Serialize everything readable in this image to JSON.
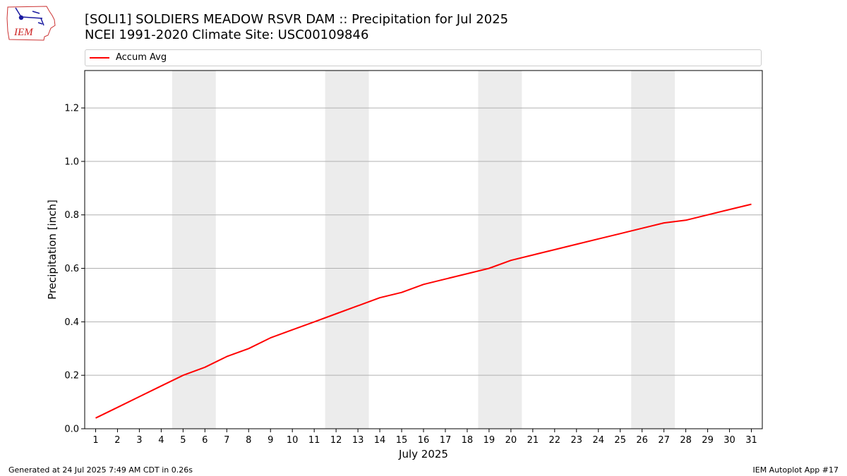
{
  "header": {
    "title_line1": "[SOLI1] SOLDIERS MEADOW RSVR DAM :: Precipitation for Jul 2025",
    "title_line2": "NCEI 1991-2020 Climate Site: USC00109846"
  },
  "logo": {
    "text": "IEM"
  },
  "footer": {
    "left": "Generated at 24 Jul 2025 7:49 AM CDT in 0.26s",
    "right": "IEM Autoplot App #17"
  },
  "colors": {
    "series": "#ff0000",
    "weekend_band": "#ececec",
    "grid": "#b0b0b0"
  },
  "chart_data": {
    "type": "line",
    "xlabel": "July 2025",
    "ylabel": "Precipitation [inch]",
    "xlim": [
      0.5,
      31.5
    ],
    "ylim": [
      0,
      1.34
    ],
    "x_ticks": [
      1,
      2,
      3,
      4,
      5,
      6,
      7,
      8,
      9,
      10,
      11,
      12,
      13,
      14,
      15,
      16,
      17,
      18,
      19,
      20,
      21,
      22,
      23,
      24,
      25,
      26,
      27,
      28,
      29,
      30,
      31
    ],
    "y_ticks": [
      0.0,
      0.2,
      0.4,
      0.6,
      0.8,
      1.0,
      1.2
    ],
    "grid": "horizontal",
    "legend_position": "top",
    "weekend_bands": [
      [
        5,
        6
      ],
      [
        12,
        13
      ],
      [
        19,
        20
      ],
      [
        26,
        27
      ]
    ],
    "series": [
      {
        "name": "Accum Avg",
        "x": [
          1,
          2,
          3,
          4,
          5,
          6,
          7,
          8,
          9,
          10,
          11,
          12,
          13,
          14,
          15,
          16,
          17,
          18,
          19,
          20,
          21,
          22,
          23,
          24,
          25,
          26,
          27,
          28,
          29,
          30,
          31
        ],
        "values": [
          0.04,
          0.08,
          0.12,
          0.16,
          0.2,
          0.23,
          0.27,
          0.3,
          0.34,
          0.37,
          0.4,
          0.43,
          0.46,
          0.49,
          0.51,
          0.54,
          0.56,
          0.58,
          0.6,
          0.63,
          0.65,
          0.67,
          0.69,
          0.71,
          0.73,
          0.75,
          0.77,
          0.78,
          0.8,
          0.82,
          0.84
        ]
      }
    ]
  }
}
